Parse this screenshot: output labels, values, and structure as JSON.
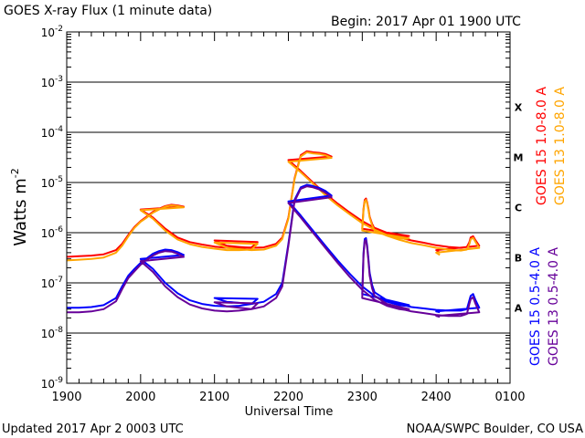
{
  "chart_data": {
    "type": "line",
    "title": "GOES X-ray Flux (1 minute data)",
    "begin_label": "Begin: 2017 Apr 01 1900 UTC",
    "ylabel": "Watts m",
    "ylabel_sup": "-2",
    "xlabel": "Universal Time",
    "y_scale": "log",
    "ylim": [
      1e-09,
      0.01
    ],
    "xlim": [
      "1900",
      "0100"
    ],
    "x_ticks": [
      "1900",
      "2000",
      "2100",
      "2200",
      "2300",
      "2400",
      "0100"
    ],
    "y_ticks": [
      {
        "base": "10",
        "exp": "-9"
      },
      {
        "base": "10",
        "exp": "-8"
      },
      {
        "base": "10",
        "exp": "-7"
      },
      {
        "base": "10",
        "exp": "-6"
      },
      {
        "base": "10",
        "exp": "-5"
      },
      {
        "base": "10",
        "exp": "-4"
      },
      {
        "base": "10",
        "exp": "-3"
      },
      {
        "base": "10",
        "exp": "-2"
      }
    ],
    "flare_classes": [
      "A",
      "B",
      "C",
      "M",
      "X"
    ],
    "grid": true,
    "legend": "right",
    "series": [
      {
        "name": "GOES 15 1.0-8.0 A",
        "color": "#ff0000",
        "x": [
          "1900",
          "1910",
          "1920",
          "1930",
          "1940",
          "1945",
          "1950",
          "1955",
          "1960",
          "1965",
          "1970",
          "1975",
          "1980",
          "1985",
          "1990",
          "1995",
          "2000",
          "2010",
          "2020",
          "2030",
          "2040",
          "2050",
          "2060",
          "2070",
          "2080",
          "2090",
          "2095",
          "2100",
          "2110",
          "2120",
          "2130",
          "2140",
          "2150",
          "2155",
          "2160",
          "2165",
          "2170",
          "2175",
          "2180",
          "2185",
          "2190",
          "2195",
          "2200",
          "2210",
          "2220",
          "2230",
          "2240",
          "2250",
          "2260",
          "2270",
          "2280",
          "2290",
          "2295",
          "2298",
          "2300",
          "2301",
          "2302",
          "2303",
          "2304",
          "2305",
          "2306",
          "2308",
          "2310",
          "2320",
          "2330",
          "2340",
          "2350",
          "2360",
          "2370",
          "2380",
          "2385",
          "2387",
          "2388",
          "2390",
          "2392",
          "2395",
          "2400",
          "2403"
        ],
        "values": [
          3.3e-07,
          3.4e-07,
          3.5e-07,
          3.7e-07,
          4.5e-07,
          6e-07,
          9e-07,
          1.3e-06,
          1.7e-06,
          2.1e-06,
          2.6e-06,
          3e-06,
          3.4e-06,
          3.6e-06,
          3.5e-06,
          3.3e-06,
          2.9e-06,
          2e-06,
          1.2e-06,
          8e-07,
          6.5e-07,
          5.8e-07,
          5.3e-07,
          5e-07,
          5e-07,
          5.1e-07,
          6.5e-07,
          7e-07,
          5.5e-07,
          5.2e-07,
          5e-07,
          5.1e-07,
          6e-07,
          8e-07,
          2e-06,
          1.2e-05,
          3.5e-05,
          4.2e-05,
          4e-05,
          3.9e-05,
          3.7e-05,
          3.3e-05,
          2.8e-05,
          1.7e-05,
          1e-05,
          6e-06,
          3.8e-06,
          2.5e-06,
          1.7e-06,
          1.25e-06,
          1e-06,
          8.7e-07,
          8.4e-07,
          8.6e-07,
          1.2e-06,
          3e-06,
          4.5e-06,
          4.8e-06,
          4e-06,
          3e-06,
          2.1e-06,
          1.5e-06,
          1.2e-06,
          9.5e-07,
          8e-07,
          7e-07,
          6.3e-07,
          5.6e-07,
          5.2e-07,
          5e-07,
          5.2e-07,
          6.5e-07,
          8e-07,
          8.5e-07,
          7e-07,
          5.5e-07,
          4.5e-07,
          4e-07
        ]
      },
      {
        "name": "GOES 13 1.0-8.0 A",
        "color": "#ffa500",
        "x": [
          "1900",
          "1910",
          "1920",
          "1930",
          "1940",
          "1945",
          "1950",
          "1955",
          "1960",
          "1965",
          "1970",
          "1975",
          "1980",
          "1985",
          "1990",
          "1995",
          "2000",
          "2010",
          "2020",
          "2030",
          "2040",
          "2050",
          "2060",
          "2070",
          "2080",
          "2090",
          "2095",
          "2100",
          "2110",
          "2120",
          "2130",
          "2140",
          "2150",
          "2155",
          "2160",
          "2165",
          "2170",
          "2175",
          "2180",
          "2185",
          "2190",
          "2195",
          "2200",
          "2210",
          "2220",
          "2230",
          "2240",
          "2250",
          "2260",
          "2270",
          "2280",
          "2290",
          "2295",
          "2298",
          "2300",
          "2301",
          "2302",
          "2303",
          "2304",
          "2305",
          "2306",
          "2308",
          "2310",
          "2320",
          "2330",
          "2340",
          "2350",
          "2360",
          "2370",
          "2380",
          "2385",
          "2387",
          "2388",
          "2390",
          "2392",
          "2395",
          "2400",
          "2403"
        ],
        "values": [
          2.8e-07,
          2.9e-07,
          3e-07,
          3.2e-07,
          4e-07,
          5.5e-07,
          8.5e-07,
          1.25e-06,
          1.65e-06,
          2e-06,
          2.5e-06,
          2.9e-06,
          3.3e-06,
          3.5e-06,
          3.4e-06,
          3.2e-06,
          2.8e-06,
          1.9e-06,
          1.1e-06,
          7.3e-07,
          5.9e-07,
          5.2e-07,
          4.8e-07,
          4.5e-07,
          4.5e-07,
          4.6e-07,
          6e-07,
          6.4e-07,
          5e-07,
          4.7e-07,
          4.5e-07,
          4.6e-07,
          5.5e-07,
          7.5e-07,
          1.9e-06,
          1.15e-05,
          3.3e-05,
          4e-05,
          3.8e-05,
          3.7e-05,
          3.5e-05,
          3.1e-05,
          2.6e-05,
          1.6e-05,
          9.5e-06,
          5.6e-06,
          3.5e-06,
          2.3e-06,
          1.55e-06,
          1.15e-06,
          9e-07,
          7.8e-07,
          7.5e-07,
          7.7e-07,
          1.1e-06,
          2.8e-06,
          4.2e-06,
          4.5e-06,
          3.8e-06,
          2.8e-06,
          2e-06,
          1.4e-06,
          1.1e-06,
          8.7e-07,
          7.2e-07,
          6.2e-07,
          5.6e-07,
          5e-07,
          4.6e-07,
          4.4e-07,
          4.6e-07,
          5.9e-07,
          7.4e-07,
          7.9e-07,
          6.5e-07,
          5e-07,
          4e-07,
          3.6e-07
        ]
      },
      {
        "name": "GOES 15 0.5-4.0 A",
        "color": "#0000ff",
        "x": [
          "1900",
          "1910",
          "1920",
          "1930",
          "1940",
          "1945",
          "1950",
          "1955",
          "1960",
          "1965",
          "1970",
          "1975",
          "1980",
          "1985",
          "1990",
          "1995",
          "2000",
          "2010",
          "2020",
          "2030",
          "2040",
          "2050",
          "2060",
          "2070",
          "2080",
          "2090",
          "2095",
          "2100",
          "2110",
          "2120",
          "2130",
          "2140",
          "2150",
          "2155",
          "2160",
          "2165",
          "2170",
          "2175",
          "2180",
          "2185",
          "2190",
          "2195",
          "2200",
          "2210",
          "2220",
          "2230",
          "2240",
          "2250",
          "2260",
          "2270",
          "2280",
          "2290",
          "2295",
          "2298",
          "2300",
          "2301",
          "2302",
          "2303",
          "2304",
          "2305",
          "2306",
          "2308",
          "2310",
          "2320",
          "2330",
          "2340",
          "2350",
          "2360",
          "2370",
          "2380",
          "2385",
          "2387",
          "2388",
          "2390",
          "2392",
          "2395",
          "2400",
          "2403"
        ],
        "values": [
          3.2e-08,
          3.2e-08,
          3.3e-08,
          3.6e-08,
          5e-08,
          8.5e-08,
          1.4e-07,
          1.9e-07,
          2.5e-07,
          3.1e-07,
          3.8e-07,
          4.3e-07,
          4.6e-07,
          4.5e-07,
          4.1e-07,
          3.6e-07,
          3e-07,
          1.9e-07,
          1e-07,
          6.2e-08,
          4.5e-08,
          3.8e-08,
          3.5e-08,
          3.4e-08,
          3.5e-08,
          3.8e-08,
          4.8e-08,
          5e-08,
          4.2e-08,
          4e-08,
          3.8e-08,
          4.2e-08,
          6e-08,
          1e-07,
          6e-07,
          4.5e-06,
          8e-06,
          9e-06,
          8.5e-06,
          7.8e-06,
          6.8e-06,
          5.5e-06,
          4.2e-06,
          2.2e-06,
          1.1e-06,
          5.5e-07,
          2.8e-07,
          1.5e-07,
          8.5e-08,
          5.5e-08,
          4.2e-08,
          3.6e-08,
          3.5e-08,
          3.6e-08,
          6e-08,
          4e-07,
          7.5e-07,
          7.8e-07,
          5.5e-07,
          3e-07,
          1.6e-07,
          9e-08,
          6.5e-08,
          4.5e-08,
          3.8e-08,
          3.3e-08,
          3.1e-08,
          2.9e-08,
          2.8e-08,
          2.8e-08,
          3e-08,
          4.5e-08,
          5.5e-08,
          6e-08,
          4.5e-08,
          3.2e-08,
          2.7e-08,
          2.6e-08
        ]
      },
      {
        "name": "GOES 13 0.5-4.0 A",
        "color": "#660099",
        "x": [
          "1900",
          "1910",
          "1920",
          "1930",
          "1940",
          "1945",
          "1950",
          "1955",
          "1960",
          "1965",
          "1970",
          "1975",
          "1980",
          "1985",
          "1990",
          "1995",
          "2000",
          "2010",
          "2020",
          "2030",
          "2040",
          "2050",
          "2060",
          "2070",
          "2080",
          "2090",
          "2095",
          "2100",
          "2110",
          "2120",
          "2130",
          "2140",
          "2150",
          "2155",
          "2160",
          "2165",
          "2170",
          "2175",
          "2180",
          "2185",
          "2190",
          "2195",
          "2200",
          "2210",
          "2220",
          "2230",
          "2240",
          "2250",
          "2260",
          "2270",
          "2280",
          "2290",
          "2295",
          "2298",
          "2300",
          "2301",
          "2302",
          "2303",
          "2304",
          "2305",
          "2306",
          "2308",
          "2310",
          "2320",
          "2330",
          "2340",
          "2350",
          "2360",
          "2370",
          "2380",
          "2385",
          "2387",
          "2388",
          "2390",
          "2392",
          "2395",
          "2400",
          "2403"
        ],
        "values": [
          2.6e-08,
          2.6e-08,
          2.7e-08,
          3e-08,
          4.3e-08,
          7.5e-08,
          1.25e-07,
          1.7e-07,
          2.3e-07,
          2.9e-07,
          3.5e-07,
          4e-07,
          4.3e-07,
          4.2e-07,
          3.8e-07,
          3.3e-07,
          2.7e-07,
          1.65e-07,
          8.5e-08,
          5.2e-08,
          3.7e-08,
          3.1e-08,
          2.8e-08,
          2.7e-08,
          2.8e-08,
          3e-08,
          3.9e-08,
          4.1e-08,
          3.4e-08,
          3.2e-08,
          3e-08,
          3.4e-08,
          5e-08,
          8.5e-08,
          5.5e-07,
          4.2e-06,
          7.5e-06,
          8.4e-06,
          8e-06,
          7.3e-06,
          6.3e-06,
          5.1e-06,
          3.9e-06,
          2e-06,
          1e-06,
          5e-07,
          2.5e-07,
          1.3e-07,
          7.3e-08,
          4.6e-08,
          3.5e-08,
          3e-08,
          2.9e-08,
          3e-08,
          5e-08,
          3.5e-07,
          6.8e-07,
          7.1e-07,
          5e-07,
          2.7e-07,
          1.4e-07,
          7.8e-08,
          5.5e-08,
          3.8e-08,
          3.1e-08,
          2.7e-08,
          2.5e-08,
          2.3e-08,
          2.2e-08,
          2.2e-08,
          2.4e-08,
          3.8e-08,
          4.7e-08,
          5.2e-08,
          3.8e-08,
          2.6e-08,
          2.2e-08,
          2.1e-08
        ]
      }
    ]
  },
  "footer": {
    "updated": "Updated 2017 Apr  2 0003 UTC",
    "credit": "NOAA/SWPC Boulder, CO USA"
  }
}
